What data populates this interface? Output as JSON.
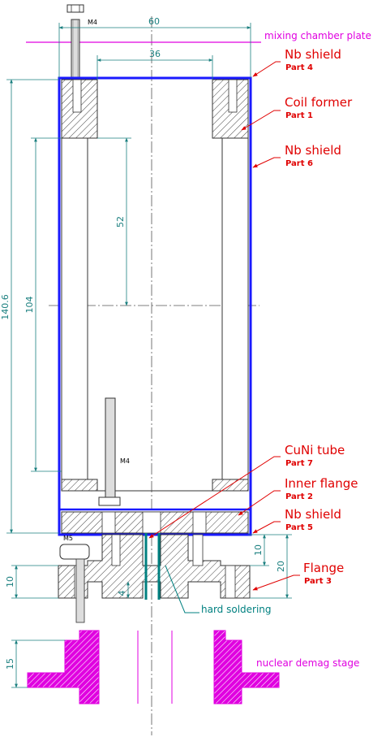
{
  "labels": {
    "mixing_chamber": "mixing chamber plate",
    "nuclear_demag": "nuclear demag stage",
    "hard_soldering": "hard soldering"
  },
  "parts": [
    {
      "name": "Nb shield",
      "part": "Part 4"
    },
    {
      "name": "Coil former",
      "part": "Part 1"
    },
    {
      "name": "Nb shield",
      "part": "Part 6"
    },
    {
      "name": "CuNi tube",
      "part": "Part 7"
    },
    {
      "name": "Inner flange",
      "part": "Part 2"
    },
    {
      "name": "Nb shield",
      "part": "Part 5"
    },
    {
      "name": "Flange",
      "part": "Part 3"
    }
  ],
  "dimensions": {
    "width_outer": "60",
    "width_inner": "36",
    "height_total": "140.6",
    "height_coil": "104",
    "height_half": "52",
    "flange_10_right": "10",
    "flange_20": "20",
    "flange_10_left": "10",
    "flange_4": "4",
    "stage_15": "15"
  },
  "threads": {
    "top_screw": "M4",
    "inner_screw": "M4",
    "bottom_screw": "M5"
  },
  "colors": {
    "shield": "#1a1aff",
    "label": "#e00000",
    "magenta": "#e000e0",
    "teal": "#008080",
    "dimension": "#1a7f7f"
  }
}
